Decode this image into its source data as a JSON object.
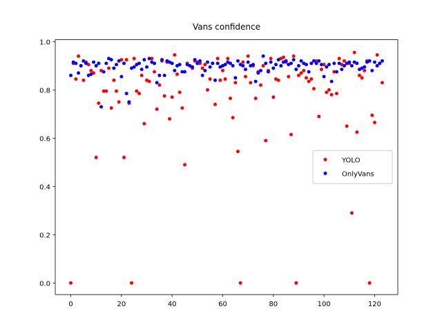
{
  "chart_data": {
    "type": "scatter",
    "title": "Vans confidence",
    "x": [
      0,
      1,
      2,
      3,
      4,
      5,
      6,
      7,
      8,
      9,
      10,
      11,
      12,
      13,
      14,
      15,
      16,
      17,
      18,
      19,
      20,
      21,
      22,
      23,
      24,
      25,
      26,
      27,
      28,
      29,
      30,
      31,
      32,
      33,
      34,
      35,
      36,
      37,
      38,
      39,
      40,
      41,
      42,
      43,
      44,
      45,
      46,
      47,
      48,
      49,
      50,
      51,
      52,
      53,
      54,
      55,
      56,
      57,
      58,
      59,
      60,
      61,
      62,
      63,
      64,
      65,
      66,
      67,
      68,
      69,
      70,
      71,
      72,
      73,
      74,
      75,
      76,
      77,
      78,
      79,
      80,
      81,
      82,
      83,
      84,
      85,
      86,
      87,
      88,
      89,
      90,
      91,
      92,
      93,
      94,
      95,
      96,
      97,
      98,
      99,
      100,
      101,
      102,
      103,
      104,
      105,
      106,
      107,
      108,
      109,
      110,
      111,
      112,
      113,
      114,
      115,
      116,
      117,
      118,
      119,
      120,
      121,
      122,
      123
    ],
    "series": [
      {
        "name": "YOLO",
        "color": "#ff0000",
        "values": [
          0,
          0.91,
          0.845,
          0.94,
          0.9,
          0.84,
          0.915,
          0.905,
          0.88,
          0.87,
          0.52,
          0.745,
          0.88,
          0.795,
          0.795,
          0.89,
          0.725,
          0.84,
          0.795,
          0.75,
          0.925,
          0.52,
          0.925,
          0.745,
          0,
          0.93,
          0.795,
          0.785,
          0.86,
          0.66,
          0.84,
          0.835,
          0.93,
          0.875,
          0.72,
          0.82,
          0.92,
          0.775,
          0.915,
          0.68,
          0.77,
          0.945,
          0.865,
          0.79,
          0.725,
          0.49,
          0.91,
          0.9,
          0.89,
          0.92,
          0.915,
          0.91,
          0.89,
          0.905,
          0.8,
          0.845,
          0.91,
          0.74,
          0.93,
          0.84,
          0.88,
          0.845,
          0.93,
          0.765,
          0.685,
          0.83,
          0.545,
          0,
          0.915,
          0.855,
          0.94,
          0.83,
          0.9,
          0.765,
          0.875,
          0.82,
          0.9,
          0.59,
          0.88,
          0.93,
          0.77,
          0.845,
          0.84,
          0.93,
          0.935,
          0.915,
          0.855,
          0.615,
          0.94,
          0,
          0.86,
          0.87,
          0.88,
          0.85,
          0.835,
          0.845,
          0.805,
          0.92,
          0.69,
          0.885,
          0.905,
          0.79,
          0.8,
          0.78,
          0.875,
          0.785,
          0.93,
          0.905,
          0.92,
          0.65,
          0.91,
          0.29,
          0.955,
          0.625,
          0.86,
          0.85,
          0.88,
          0.92,
          0,
          0.695,
          0.665,
          0.945,
          0.91,
          0.83
        ]
      },
      {
        "name": "OnlyVans",
        "color": "#0000ff",
        "values": [
          0.86,
          0.915,
          0.91,
          0.87,
          0.9,
          0.92,
          0.91,
          0.86,
          0.865,
          0.915,
          0.9,
          0.91,
          0.73,
          0.875,
          0.91,
          0.93,
          0.925,
          0.89,
          0.905,
          0.92,
          0.855,
          0.91,
          0.785,
          0.75,
          0.89,
          0.895,
          0.905,
          0.91,
          0.885,
          0.925,
          0.895,
          0.93,
          0.915,
          0.91,
          0.83,
          0.86,
          0.925,
          0.86,
          0.92,
          0.915,
          0.91,
          0.88,
          0.9,
          0.905,
          0.875,
          0.875,
          0.905,
          0.9,
          0.895,
          0.925,
          0.91,
          0.92,
          0.86,
          0.88,
          0.915,
          0.895,
          0.91,
          0.84,
          0.91,
          0.895,
          0.9,
          0.905,
          0.915,
          0.91,
          0.9,
          0.85,
          0.92,
          0.905,
          0.9,
          0.885,
          0.915,
          0.9,
          0.905,
          0.835,
          0.87,
          0.88,
          0.94,
          0.91,
          0.875,
          0.915,
          0.89,
          0.905,
          0.925,
          0.9,
          0.915,
          0.92,
          0.905,
          0.91,
          0.925,
          0.885,
          0.9,
          0.92,
          0.91,
          0.905,
          0.875,
          0.91,
          0.92,
          0.91,
          0.92,
          0.905,
          0.855,
          0.895,
          0.905,
          0.835,
          0.91,
          0.875,
          0.91,
          0.885,
          0.9,
          0.91,
          0.915,
          0.9,
          0.915,
          0.91,
          0.885,
          0.89,
          0.895,
          0.915,
          0.92,
          0.88,
          0.915,
          0.9,
          0.91,
          0.92
        ]
      }
    ],
    "xlim": [
      -6.15,
      129.15
    ],
    "ylim": [
      -0.048,
      1.008
    ],
    "xticks": [
      0,
      20,
      40,
      60,
      80,
      100,
      120
    ],
    "yticks": [
      {
        "value": 0,
        "label": "0.0"
      },
      {
        "value": 0.2,
        "label": "0.2"
      },
      {
        "value": 0.4,
        "label": "0.4"
      },
      {
        "value": 0.6,
        "label": "0.6"
      },
      {
        "value": 0.8,
        "label": "0.8"
      },
      {
        "value": 1,
        "label": "1.0"
      }
    ],
    "legend": "center right"
  }
}
